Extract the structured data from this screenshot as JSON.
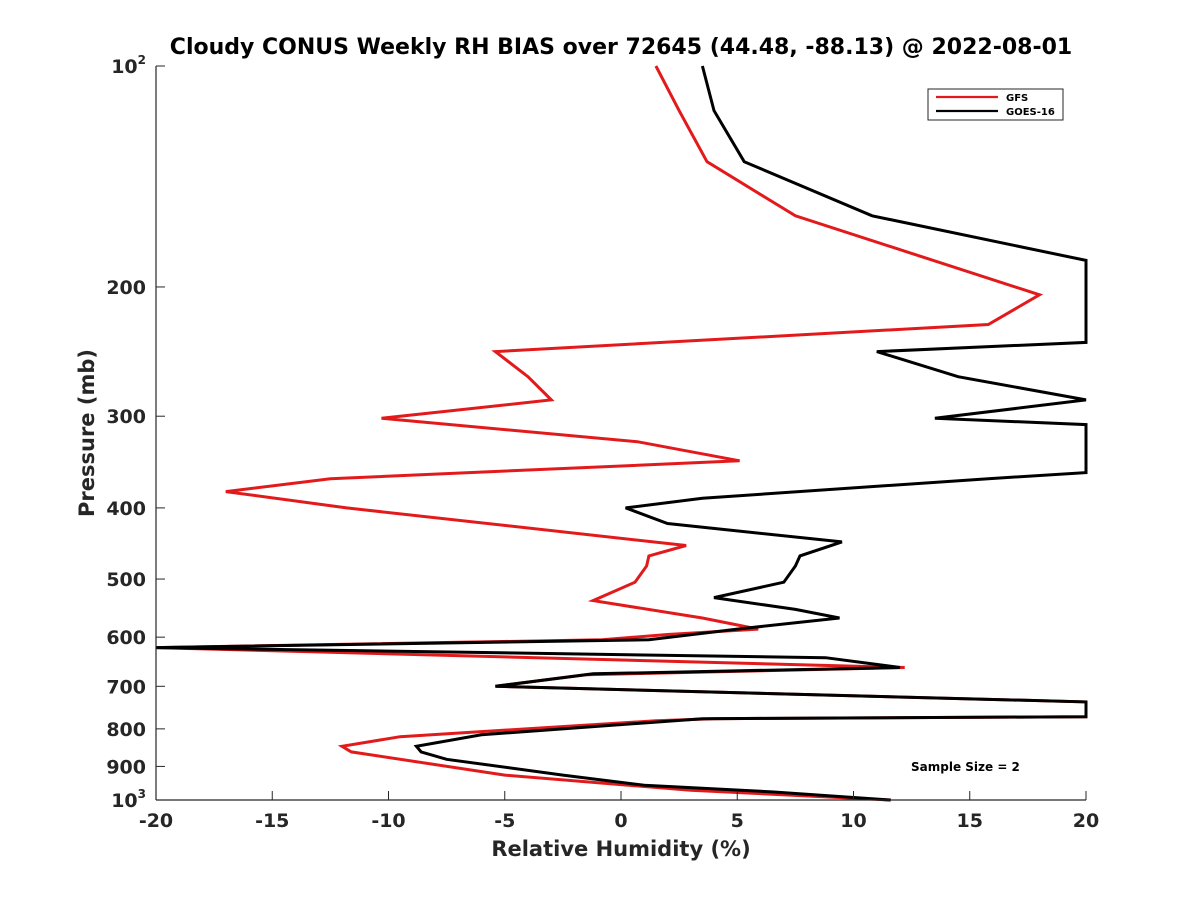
{
  "chart_data": {
    "type": "line",
    "title": "Cloudy CONUS Weekly RH BIAS over 72645 (44.48, -88.13) @ 2022-08-01",
    "xlabel": "Relative Humidity (%)",
    "ylabel": "Pressure (mb)",
    "xlim": [
      -20,
      20
    ],
    "ylim": [
      100,
      1000
    ],
    "y_scale": "log",
    "y_reversed": true,
    "grid": false,
    "legend_position": "top-right",
    "x_ticks": [
      "-20",
      "-15",
      "-10",
      "-5",
      "0",
      "5",
      "10",
      "15",
      "20"
    ],
    "y_ticks": [
      {
        "value": 100,
        "base": "10",
        "exp": "2"
      },
      {
        "value": 200,
        "label": "200"
      },
      {
        "value": 300,
        "label": "300"
      },
      {
        "value": 400,
        "label": "400"
      },
      {
        "value": 500,
        "label": "500"
      },
      {
        "value": 600,
        "label": "600"
      },
      {
        "value": 700,
        "label": "700"
      },
      {
        "value": 800,
        "label": "800"
      },
      {
        "value": 900,
        "label": "900"
      },
      {
        "value": 1000,
        "base": "10",
        "exp": "3"
      }
    ],
    "series": [
      {
        "name": "GFS",
        "color": "#e31a1c",
        "points": [
          [
            1.5,
            100
          ],
          [
            2.5,
            115
          ],
          [
            3.7,
            135
          ],
          [
            7.5,
            160
          ],
          [
            18.0,
            205
          ],
          [
            15.8,
            225
          ],
          [
            -5.4,
            245
          ],
          [
            -4.0,
            265
          ],
          [
            -3.0,
            285
          ],
          [
            -10.3,
            302
          ],
          [
            0.7,
            325
          ],
          [
            5.1,
            345
          ],
          [
            -12.5,
            365
          ],
          [
            -17.0,
            380
          ],
          [
            -11.8,
            400
          ],
          [
            2.8,
            450
          ],
          [
            1.2,
            465
          ],
          [
            1.1,
            480
          ],
          [
            0.6,
            505
          ],
          [
            -1.2,
            535
          ],
          [
            3.5,
            565
          ],
          [
            5.9,
            585
          ],
          [
            2.0,
            595
          ],
          [
            -0.8,
            605
          ],
          [
            -20.0,
            620
          ],
          [
            12.2,
            660
          ],
          [
            -1.5,
            675
          ],
          [
            -5.4,
            700
          ],
          [
            20.0,
            735
          ],
          [
            20.0,
            770
          ],
          [
            4.0,
            775
          ],
          [
            1.5,
            780
          ],
          [
            -9.5,
            820
          ],
          [
            -12.0,
            845
          ],
          [
            -11.6,
            860
          ],
          [
            -5.0,
            925
          ],
          [
            3.0,
            970
          ],
          [
            11.6,
            1000
          ]
        ]
      },
      {
        "name": "GOES-16",
        "color": "#000000",
        "points": [
          [
            3.5,
            100
          ],
          [
            4.0,
            115
          ],
          [
            5.3,
            135
          ],
          [
            10.8,
            160
          ],
          [
            20.0,
            184
          ],
          [
            20.0,
            238
          ],
          [
            11.0,
            245
          ],
          [
            14.5,
            265
          ],
          [
            20.0,
            285
          ],
          [
            13.5,
            302
          ],
          [
            20.0,
            308
          ],
          [
            20.0,
            358
          ],
          [
            15.8,
            365
          ],
          [
            3.5,
            388
          ],
          [
            0.2,
            400
          ],
          [
            2.0,
            420
          ],
          [
            9.5,
            445
          ],
          [
            7.7,
            465
          ],
          [
            7.5,
            480
          ],
          [
            7.0,
            505
          ],
          [
            4.0,
            530
          ],
          [
            7.5,
            550
          ],
          [
            9.4,
            565
          ],
          [
            5.0,
            585
          ],
          [
            1.2,
            605
          ],
          [
            -20.0,
            620
          ],
          [
            8.8,
            640
          ],
          [
            12.0,
            660
          ],
          [
            -1.2,
            673
          ],
          [
            -5.4,
            700
          ],
          [
            20.0,
            735
          ],
          [
            20.0,
            770
          ],
          [
            3.5,
            775
          ],
          [
            -6.0,
            815
          ],
          [
            -8.8,
            845
          ],
          [
            -8.6,
            860
          ],
          [
            -7.5,
            880
          ],
          [
            -2.5,
            925
          ],
          [
            1.0,
            955
          ],
          [
            6.5,
            975
          ],
          [
            11.6,
            1000
          ]
        ]
      }
    ],
    "annotation": "Sample Size = 2"
  }
}
